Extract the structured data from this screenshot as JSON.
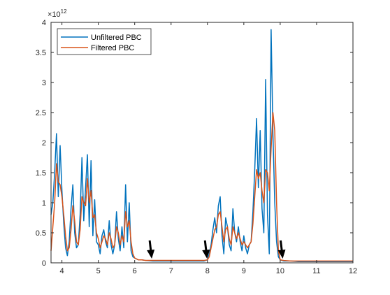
{
  "chart_data": {
    "type": "line",
    "title": "",
    "xlabel": "",
    "ylabel": "",
    "exponent": {
      "base": "×10",
      "power": "12"
    },
    "xlim": [
      3.7,
      12
    ],
    "ylim": [
      0,
      4
    ],
    "xticks": [
      4,
      5,
      6,
      7,
      8,
      9,
      10,
      11,
      12
    ],
    "xtick_labels": [
      "4",
      "5",
      "6",
      "7",
      "8",
      "9",
      "10",
      "11",
      "12"
    ],
    "yticks": [
      0,
      0.5,
      1,
      1.5,
      2,
      2.5,
      3,
      3.5,
      4
    ],
    "ytick_labels": [
      "0",
      "0.5",
      "1",
      "1.5",
      "2",
      "2.5",
      "3",
      "3.5",
      "4"
    ],
    "grid": false,
    "legend_position": "top-left",
    "series": [
      {
        "name": "Unfiltered PBC",
        "color": "#0072BD",
        "x": [
          3.7,
          3.75,
          3.8,
          3.85,
          3.9,
          3.95,
          4.0,
          4.05,
          4.1,
          4.15,
          4.2,
          4.25,
          4.3,
          4.35,
          4.4,
          4.45,
          4.5,
          4.55,
          4.6,
          4.65,
          4.7,
          4.75,
          4.8,
          4.85,
          4.9,
          4.95,
          5.0,
          5.05,
          5.1,
          5.15,
          5.2,
          5.25,
          5.3,
          5.35,
          5.4,
          5.45,
          5.5,
          5.55,
          5.6,
          5.65,
          5.7,
          5.75,
          5.8,
          5.85,
          5.9,
          5.95,
          6.0,
          6.1,
          6.2,
          6.3,
          6.5,
          7.0,
          7.5,
          7.9,
          8.0,
          8.05,
          8.1,
          8.15,
          8.2,
          8.25,
          8.3,
          8.35,
          8.4,
          8.45,
          8.5,
          8.55,
          8.6,
          8.65,
          8.7,
          8.75,
          8.8,
          8.85,
          8.9,
          8.95,
          9.0,
          9.05,
          9.1,
          9.15,
          9.2,
          9.25,
          9.3,
          9.35,
          9.4,
          9.45,
          9.5,
          9.55,
          9.6,
          9.65,
          9.7,
          9.75,
          9.8,
          9.85,
          9.9,
          9.95,
          10.0,
          10.1,
          10.3,
          10.5,
          11.0,
          11.5,
          12.0
        ],
        "values": [
          0.8,
          1.0,
          1.5,
          2.15,
          1.1,
          1.95,
          1.2,
          0.65,
          0.25,
          0.12,
          0.35,
          0.9,
          1.3,
          0.5,
          0.25,
          0.3,
          0.8,
          1.75,
          0.7,
          1.25,
          1.8,
          0.6,
          1.7,
          0.45,
          1.05,
          0.35,
          0.3,
          0.15,
          0.45,
          0.55,
          0.35,
          0.25,
          0.7,
          0.3,
          0.15,
          0.3,
          0.85,
          0.4,
          0.2,
          0.6,
          0.25,
          1.3,
          0.35,
          1.0,
          0.2,
          0.1,
          0.08,
          0.05,
          0.05,
          0.04,
          0.03,
          0.03,
          0.03,
          0.03,
          0.05,
          0.15,
          0.3,
          0.55,
          0.75,
          0.5,
          0.95,
          1.1,
          0.45,
          0.15,
          0.75,
          0.6,
          0.3,
          0.2,
          0.9,
          0.5,
          0.35,
          0.6,
          0.35,
          0.2,
          0.45,
          0.25,
          0.15,
          0.3,
          0.35,
          0.85,
          1.55,
          2.4,
          1.25,
          2.2,
          0.9,
          0.5,
          3.05,
          0.8,
          0.15,
          3.88,
          2.15,
          1.0,
          0.35,
          0.1,
          0.05,
          0.03,
          0.03,
          0.02,
          0.02,
          0.02,
          0.02
        ]
      },
      {
        "name": "Filtered PBC",
        "color": "#D95319",
        "x": [
          3.7,
          3.75,
          3.8,
          3.85,
          3.9,
          3.95,
          4.0,
          4.05,
          4.1,
          4.15,
          4.2,
          4.25,
          4.3,
          4.35,
          4.4,
          4.45,
          4.5,
          4.55,
          4.6,
          4.65,
          4.7,
          4.75,
          4.8,
          4.85,
          4.9,
          4.95,
          5.0,
          5.05,
          5.1,
          5.15,
          5.2,
          5.25,
          5.3,
          5.35,
          5.4,
          5.45,
          5.5,
          5.55,
          5.6,
          5.65,
          5.7,
          5.75,
          5.8,
          5.85,
          5.9,
          5.95,
          6.0,
          6.1,
          6.2,
          6.3,
          6.5,
          7.0,
          7.5,
          7.9,
          8.0,
          8.05,
          8.1,
          8.15,
          8.2,
          8.25,
          8.3,
          8.35,
          8.4,
          8.45,
          8.5,
          8.55,
          8.6,
          8.65,
          8.7,
          8.75,
          8.8,
          8.85,
          8.9,
          8.95,
          9.0,
          9.05,
          9.1,
          9.15,
          9.2,
          9.25,
          9.3,
          9.35,
          9.4,
          9.45,
          9.5,
          9.55,
          9.6,
          9.65,
          9.7,
          9.75,
          9.8,
          9.85,
          9.9,
          9.95,
          10.0,
          10.1,
          10.3,
          10.5,
          11.0,
          11.5,
          12.0
        ],
        "values": [
          0.2,
          0.6,
          1.0,
          1.65,
          1.35,
          1.3,
          1.1,
          0.8,
          0.45,
          0.2,
          0.25,
          0.55,
          0.95,
          0.7,
          0.35,
          0.3,
          0.55,
          1.1,
          1.0,
          0.95,
          1.4,
          1.0,
          1.2,
          0.75,
          0.8,
          0.5,
          0.4,
          0.25,
          0.35,
          0.45,
          0.4,
          0.3,
          0.5,
          0.4,
          0.25,
          0.3,
          0.6,
          0.5,
          0.3,
          0.45,
          0.35,
          0.85,
          0.6,
          0.7,
          0.35,
          0.15,
          0.08,
          0.05,
          0.05,
          0.04,
          0.04,
          0.04,
          0.04,
          0.04,
          0.05,
          0.1,
          0.25,
          0.4,
          0.55,
          0.6,
          0.8,
          0.85,
          0.6,
          0.35,
          0.55,
          0.6,
          0.4,
          0.3,
          0.6,
          0.5,
          0.4,
          0.5,
          0.4,
          0.3,
          0.35,
          0.3,
          0.25,
          0.3,
          0.35,
          0.65,
          1.1,
          1.55,
          1.4,
          1.5,
          1.2,
          1.0,
          1.55,
          1.5,
          1.2,
          1.9,
          2.5,
          2.2,
          1.0,
          0.2,
          0.05,
          0.04,
          0.03,
          0.03,
          0.03,
          0.03,
          0.03
        ]
      }
    ],
    "annotations": [
      {
        "type": "arrow",
        "x": 6.45,
        "direction": "down"
      },
      {
        "type": "arrow",
        "x": 7.97,
        "direction": "down"
      },
      {
        "type": "arrow",
        "x": 10.05,
        "direction": "down"
      }
    ]
  }
}
